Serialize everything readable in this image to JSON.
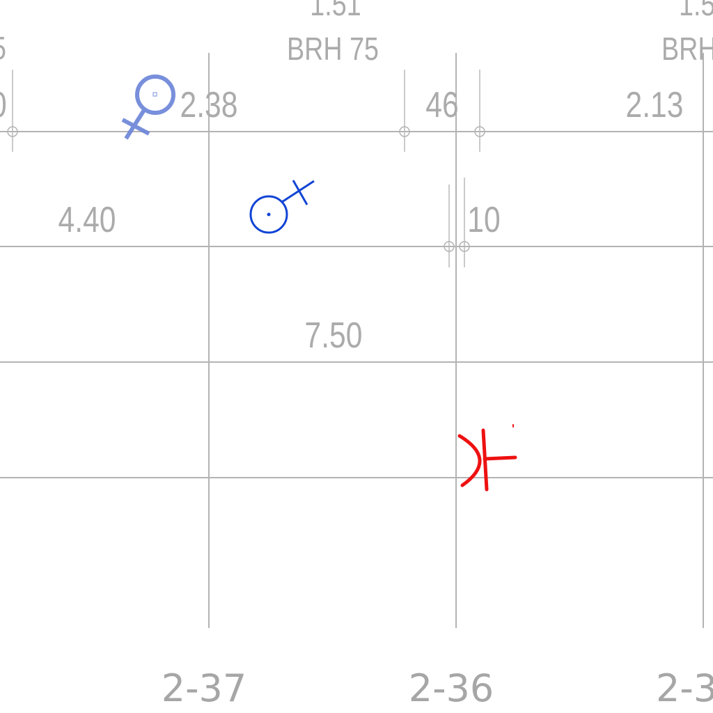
{
  "plan": {
    "top_header": {
      "partial_value_left": "1.51",
      "partial_value_right": "1.5",
      "partial_left_edge": "5"
    },
    "room_labels": {
      "left": "BRH 75",
      "right": "BRH"
    },
    "dimensions": {
      "left_edge_fragment": "0",
      "upper_left": "2.38",
      "upper_middle": "46",
      "upper_right": "2.13",
      "middle_left": "4.40",
      "middle_right": "10",
      "center": "7.50"
    },
    "axis_labels": {
      "col_1": "2-37",
      "col_2": "2-36",
      "col_3": "2-3"
    }
  },
  "symbols": [
    {
      "name": "female-symbol",
      "color": "#6d86d8"
    },
    {
      "name": "male-symbol",
      "color": "#1144d4"
    },
    {
      "name": "red-t-symbol",
      "color": "#ee1111"
    }
  ]
}
